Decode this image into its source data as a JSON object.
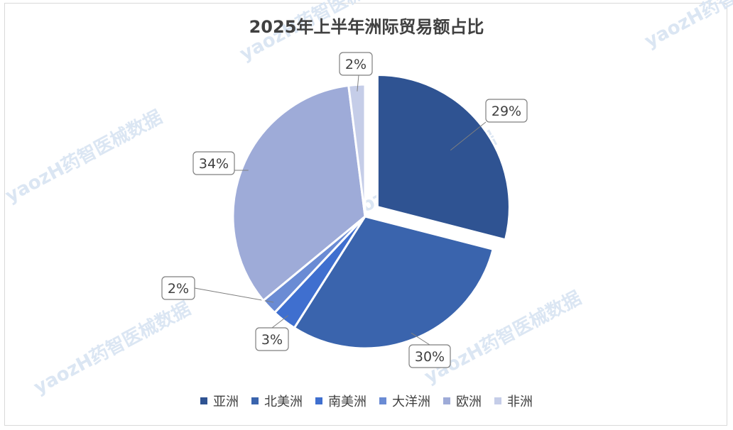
{
  "watermark": {
    "text": "yaozH药智医械数据"
  },
  "chart_data": {
    "type": "pie",
    "title": "2025年上半年洲际贸易额占比",
    "categories": [
      "亚洲",
      "北美洲",
      "南美洲",
      "大洋洲",
      "欧洲",
      "非洲"
    ],
    "values": [
      29,
      30,
      3,
      2,
      34,
      2
    ],
    "labels": [
      "29%",
      "30%",
      "3%",
      "2%",
      "34%",
      "2%"
    ],
    "colors": [
      "#2f5392",
      "#3a64ad",
      "#3f6fcf",
      "#6a8bd4",
      "#9eabd8",
      "#c5cde8"
    ],
    "exploded": [
      "亚洲"
    ],
    "legend_position": "bottom"
  }
}
